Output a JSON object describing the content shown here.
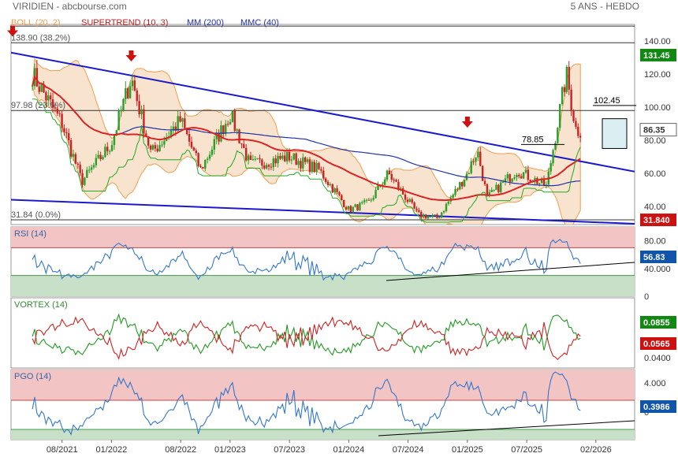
{
  "header": {
    "title": "VIRIDIEN - abcbourse.com",
    "period": "5 ANS - HEBDO"
  },
  "colors": {
    "up": "#2aa02a",
    "down": "#cc2222",
    "boll": "#f0a050",
    "trend": "#1a1acc",
    "mm200": "#2233aa",
    "mmc40": "#dd2222",
    "supertrend_up": "#22aa22",
    "supertrend_down": "#bb2222",
    "rsi": "#3377cc",
    "vortex_plus": "#229922",
    "vortex_minus": "#cc2222",
    "pgo": "#3377cc"
  },
  "chart_data": [
    {
      "type": "candlestick",
      "panel": "price",
      "legend": [
        "BOLL (20, 2)",
        "SUPERTREND (10, 3)",
        "MM (200)",
        "MMC (40)"
      ],
      "y_ticks": [
        "140.00",
        "120.00",
        "100.00",
        "80.00",
        "60.00",
        "40.00"
      ],
      "ylim": [
        29,
        150
      ],
      "x_ticks": [
        "08/2021",
        "01/2022",
        "08/2022",
        "01/2023",
        "07/2023",
        "01/2024",
        "07/2024",
        "01/2025",
        "07/2025",
        "02/2026"
      ],
      "last_price": "86.35",
      "supertrend_value": "131.45",
      "min_value": "31.840",
      "fib_levels": [
        {
          "label": "138.90  (38.2%)",
          "value": 138.9
        },
        {
          "label": "97.98  (23.6%)",
          "value": 97.98
        },
        {
          "label": "31.84  (0.0%)",
          "value": 31.84
        }
      ],
      "annotations": [
        {
          "label": "78.85",
          "value": 78.85
        },
        {
          "label": "102.45",
          "value": 102.45
        }
      ],
      "key_closes": [
        {
          "date": "2021-05",
          "close": 120
        },
        {
          "date": "2021-08",
          "close": 90
        },
        {
          "date": "2021-10",
          "close": 55
        },
        {
          "date": "2022-01",
          "close": 78
        },
        {
          "date": "2022-03",
          "close": 118
        },
        {
          "date": "2022-05",
          "close": 72
        },
        {
          "date": "2022-08",
          "close": 92
        },
        {
          "date": "2022-10",
          "close": 62
        },
        {
          "date": "2023-01",
          "close": 96
        },
        {
          "date": "2023-03",
          "close": 65
        },
        {
          "date": "2023-07",
          "close": 70
        },
        {
          "date": "2023-10",
          "close": 62
        },
        {
          "date": "2024-01",
          "close": 38
        },
        {
          "date": "2024-03",
          "close": 42
        },
        {
          "date": "2024-05",
          "close": 60
        },
        {
          "date": "2024-08",
          "close": 35
        },
        {
          "date": "2024-10",
          "close": 33
        },
        {
          "date": "2025-01",
          "close": 60
        },
        {
          "date": "2025-02",
          "close": 74
        },
        {
          "date": "2025-03",
          "close": 45
        },
        {
          "date": "2025-06",
          "close": 62
        },
        {
          "date": "2025-09",
          "close": 52
        },
        {
          "date": "2025-11",
          "close": 120
        },
        {
          "date": "2025-12",
          "close": 86
        }
      ]
    },
    {
      "type": "line",
      "panel": "rsi",
      "title": "RSI (14)",
      "y_ticks": [
        "80.00",
        "40.000",
        "0"
      ],
      "ylim": [
        0,
        100
      ],
      "last_value": "56.83",
      "zones": [
        70,
        30
      ]
    },
    {
      "type": "line",
      "panel": "vortex",
      "title": "VORTEX (14)",
      "y_ticks": [
        "0.0400"
      ],
      "last_values": [
        "0.0855",
        "0.0565"
      ]
    },
    {
      "type": "line",
      "panel": "pgo",
      "title": "PGO (14)",
      "y_ticks": [
        "4.000",
        "0"
      ],
      "last_value": "0.3986"
    }
  ]
}
